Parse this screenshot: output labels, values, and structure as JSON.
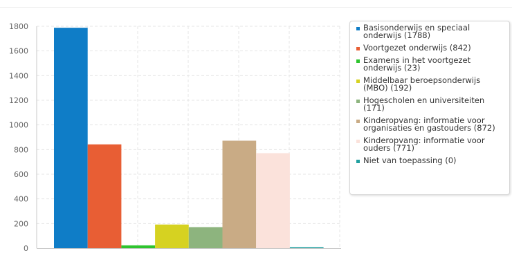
{
  "chart_data": {
    "type": "bar",
    "categories": [
      "Basisonderwijs en speciaal onderwijs",
      "Voortgezet onderwijs",
      "Examens in het voortgezet onderwijs",
      "Middelbaar beroepsonderwijs (MBO)",
      "Hogescholen en universiteiten",
      "Kinderopvang: informatie voor organisaties en gastouders",
      "Kinderopvang: informatie voor ouders",
      "Niet van toepassing"
    ],
    "values": [
      1788,
      842,
      23,
      192,
      171,
      872,
      771,
      0
    ],
    "colors": [
      "#0f7dc7",
      "#e85e34",
      "#2ec42e",
      "#d6d221",
      "#8db47e",
      "#c9ab85",
      "#fbe2db",
      "#21a0a0"
    ],
    "ylim": [
      0,
      1800
    ],
    "yticks": [
      0,
      200,
      400,
      600,
      800,
      1000,
      1200,
      1400,
      1600,
      1800
    ],
    "ytick_labels": [
      "0",
      "200",
      "400",
      "600",
      "800",
      "1000",
      "1200",
      "1400",
      "1600",
      "1800"
    ],
    "grid": true,
    "legend_position": "right",
    "legend": [
      "Basisonderwijs en speciaal onderwijs (1788)",
      "Voortgezet onderwijs (842)",
      "Examens in het voortgezet onderwijs (23)",
      "Middelbaar beroepsonderwijs (MBO) (192)",
      "Hogescholen en universiteiten (171)",
      "Kinderopvang: informatie voor organisaties en gastouders (872)",
      "Kinderopvang: informatie voor ouders (771)",
      "Niet van toepassing (0)"
    ]
  }
}
